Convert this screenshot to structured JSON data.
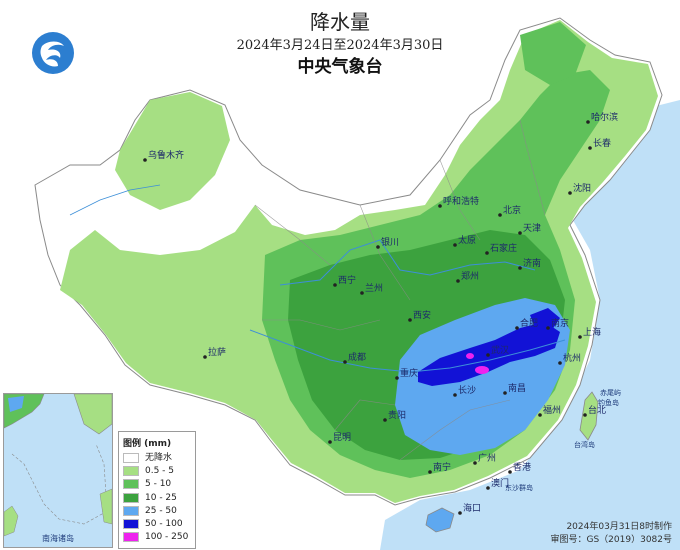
{
  "title": "降水量",
  "date_range": "2024年3月24日至2024年3月30日",
  "agency": "中央气象台",
  "footer": {
    "made": "2024年03月31日8时制作",
    "approval": "审图号：GS（2019）3082号"
  },
  "legend": {
    "title": "图例 (mm)",
    "items": [
      {
        "label": "无降水",
        "color": "#ffffff"
      },
      {
        "label": "0.5 - 5",
        "color": "#a6df83"
      },
      {
        "label": "5 - 10",
        "color": "#5fc15a"
      },
      {
        "label": "10 - 25",
        "color": "#3ca23e"
      },
      {
        "label": "25 - 50",
        "color": "#5ea8f0"
      },
      {
        "label": "50 - 100",
        "color": "#1212d6"
      },
      {
        "label": "100 - 250",
        "color": "#ee22ee"
      }
    ]
  },
  "inset_label": "南海诸岛",
  "cities": [
    {
      "name": "哈尔滨"
    },
    {
      "name": "长春"
    },
    {
      "name": "沈阳"
    },
    {
      "name": "乌鲁木齐"
    },
    {
      "name": "呼和浩特"
    },
    {
      "name": "北京"
    },
    {
      "name": "天津"
    },
    {
      "name": "石家庄"
    },
    {
      "name": "太原"
    },
    {
      "name": "银川"
    },
    {
      "name": "济南"
    },
    {
      "name": "西宁"
    },
    {
      "name": "兰州"
    },
    {
      "name": "郑州"
    },
    {
      "name": "西安"
    },
    {
      "name": "合肥"
    },
    {
      "name": "南京"
    },
    {
      "name": "上海"
    },
    {
      "name": "杭州"
    },
    {
      "name": "武汉"
    },
    {
      "name": "成都"
    },
    {
      "name": "重庆"
    },
    {
      "name": "拉萨"
    },
    {
      "name": "长沙"
    },
    {
      "name": "南昌"
    },
    {
      "name": "福州"
    },
    {
      "name": "台北"
    },
    {
      "name": "贵阳"
    },
    {
      "name": "昆明"
    },
    {
      "name": "南宁"
    },
    {
      "name": "广州"
    },
    {
      "name": "香港"
    },
    {
      "name": "澳门"
    },
    {
      "name": "海口"
    }
  ],
  "features": [
    {
      "name": "赤尾屿"
    },
    {
      "name": "钓鱼岛"
    },
    {
      "name": "台湾岛"
    },
    {
      "name": "东沙群岛"
    }
  ],
  "colors": {
    "ocean": "#bfe0f7",
    "boundary": "#8a8a8a",
    "water": "#3d8fd8"
  }
}
